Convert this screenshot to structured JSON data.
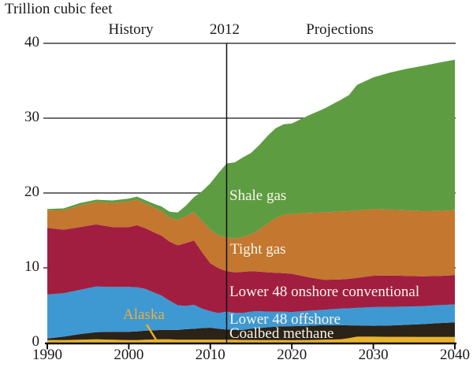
{
  "title": "Trillion cubic feet",
  "header": {
    "history_label": "History",
    "divider_year": "2012",
    "projections_label": "Projections"
  },
  "colors": {
    "grid_line": "#3f3f3f",
    "axis_line": "#111111",
    "divider_line": "#111111",
    "text": "#1a1a1a",
    "area_label_text": "#faf6ea",
    "alaska_label_text": "#eeb03a"
  },
  "chart_data": {
    "type": "area",
    "stacked": true,
    "title": "Trillion cubic feet",
    "ylabel": "Trillion cubic feet",
    "xlabel": "",
    "xlim": [
      1990,
      2040
    ],
    "ylim": [
      0,
      40
    ],
    "x_ticks": [
      1990,
      2000,
      2010,
      2020,
      2030,
      2040
    ],
    "y_ticks": [
      0,
      10,
      20,
      30,
      40
    ],
    "grid": "horizontal",
    "legend_position": "labels-on-areas",
    "divider": {
      "x": 2012,
      "left_label": "History",
      "right_label": "Projections"
    },
    "x": [
      1990,
      1992,
      1994,
      1996,
      1998,
      2000,
      2001,
      2002,
      2003,
      2004,
      2005,
      2006,
      2007,
      2008,
      2009,
      2010,
      2011,
      2012,
      2013,
      2014,
      2015,
      2016,
      2017,
      2018,
      2019,
      2020,
      2022,
      2024,
      2026,
      2027,
      2028,
      2030,
      2032,
      2034,
      2036,
      2038,
      2040
    ],
    "series": [
      {
        "name": "Alaska",
        "color": "#eab32a",
        "values": [
          0.35,
          0.35,
          0.4,
          0.45,
          0.4,
          0.35,
          0.35,
          0.4,
          0.42,
          0.45,
          0.45,
          0.4,
          0.4,
          0.4,
          0.4,
          0.4,
          0.4,
          0.4,
          0.38,
          0.36,
          0.36,
          0.35,
          0.35,
          0.34,
          0.34,
          0.33,
          0.35,
          0.4,
          0.45,
          0.6,
          0.8,
          0.8,
          0.78,
          0.78,
          0.77,
          0.76,
          0.76
        ]
      },
      {
        "name": "Coalbed methane",
        "color": "#2b2218",
        "values": [
          0.2,
          0.45,
          0.75,
          0.95,
          1.05,
          1.1,
          1.15,
          1.2,
          1.22,
          1.25,
          1.25,
          1.3,
          1.4,
          1.45,
          1.55,
          1.6,
          1.45,
          1.35,
          1.32,
          1.35,
          1.5,
          1.6,
          1.7,
          1.8,
          1.85,
          1.87,
          1.9,
          1.95,
          1.9,
          1.7,
          1.5,
          1.45,
          1.5,
          1.6,
          1.7,
          1.85,
          1.95
        ]
      },
      {
        "name": "Lower 48 offshore",
        "color": "#3e98d2",
        "values": [
          5.9,
          5.8,
          5.9,
          6.1,
          6.0,
          6.0,
          5.9,
          5.6,
          5.1,
          4.6,
          3.9,
          3.3,
          3.1,
          3.2,
          2.6,
          2.2,
          2.1,
          2.4,
          2.3,
          2.25,
          2.3,
          2.25,
          2.1,
          2.0,
          1.95,
          1.9,
          2.0,
          2.05,
          2.2,
          2.28,
          2.35,
          2.5,
          2.5,
          2.45,
          2.4,
          2.4,
          2.4
        ]
      },
      {
        "name": "Lower 48 onshore conventional",
        "color": "#a11e41",
        "values": [
          8.9,
          8.5,
          8.4,
          8.3,
          8.0,
          8.0,
          8.3,
          8.1,
          8.05,
          8.0,
          7.9,
          8.0,
          8.4,
          8.6,
          7.5,
          6.4,
          6.0,
          5.4,
          5.4,
          5.5,
          5.4,
          5.3,
          5.25,
          5.2,
          5.15,
          5.1,
          4.5,
          4.0,
          3.9,
          3.95,
          4.0,
          4.2,
          4.2,
          4.1,
          4.0,
          3.9,
          3.9
        ]
      },
      {
        "name": "Tight gas",
        "color": "#c3772f",
        "values": [
          2.3,
          2.6,
          2.9,
          3.0,
          3.2,
          3.4,
          3.4,
          3.3,
          3.3,
          3.3,
          3.2,
          3.4,
          3.6,
          3.8,
          4.2,
          4.5,
          4.4,
          4.5,
          4.5,
          4.7,
          4.9,
          5.6,
          6.5,
          7.3,
          7.8,
          8.0,
          8.6,
          9.0,
          9.1,
          9.05,
          9.0,
          8.9,
          8.8,
          8.75,
          8.7,
          8.7,
          8.7
        ]
      },
      {
        "name": "Shale gas",
        "color": "#5e9c42",
        "values": [
          0.2,
          0.25,
          0.3,
          0.3,
          0.35,
          0.4,
          0.42,
          0.45,
          0.5,
          0.6,
          0.8,
          1.0,
          1.4,
          2.0,
          4.0,
          6.2,
          8.3,
          9.9,
          10.2,
          10.6,
          10.9,
          11.3,
          11.7,
          12.0,
          12.1,
          12.1,
          13.0,
          13.9,
          14.9,
          15.5,
          16.8,
          17.6,
          18.3,
          18.9,
          19.4,
          19.8,
          20.1
        ]
      }
    ]
  }
}
